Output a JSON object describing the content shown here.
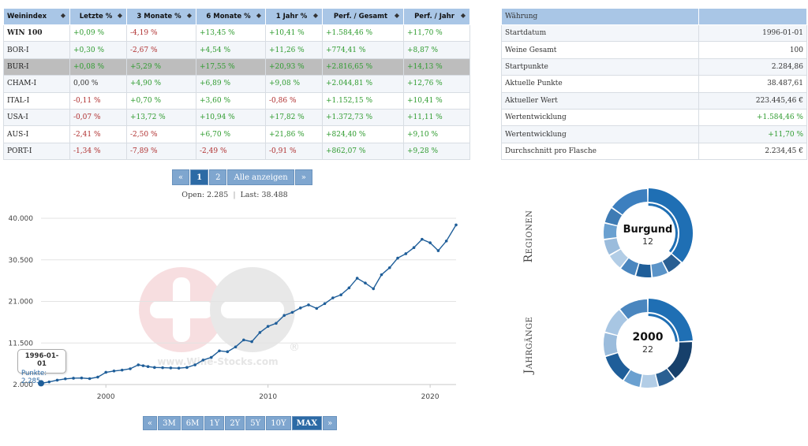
{
  "index_table": {
    "headers": [
      "Weinindex",
      "Letzte %",
      "3 Monate %",
      "6 Monate %",
      "1 Jahr %",
      "Perf. / Gesamt",
      "Perf. / Jahr"
    ],
    "sort_icon": "sort-icon",
    "rows": [
      {
        "name": "WIN 100",
        "cells": [
          "+0,09 %",
          "-4,19 %",
          "+13,45 %",
          "+10,41 %",
          "+1.584,46 %",
          "+11,70 %"
        ]
      },
      {
        "name": "BOR-I",
        "cells": [
          "+0,30 %",
          "-2,67 %",
          "+4,54 %",
          "+11,26 %",
          "+774,41 %",
          "+8,87 %"
        ]
      },
      {
        "name": "BUR-I",
        "cells": [
          "+0,08 %",
          "+5,29 %",
          "+17,55 %",
          "+20,93 %",
          "+2.816,65 %",
          "+14,13 %"
        ]
      },
      {
        "name": "CHAM-I",
        "cells": [
          "0,00 %",
          "+4,90 %",
          "+6,89 %",
          "+9,08 %",
          "+2.044,81 %",
          "+12,76 %"
        ]
      },
      {
        "name": "ITAL-I",
        "cells": [
          "-0,11 %",
          "+0,70 %",
          "+3,60 %",
          "-0,86 %",
          "+1.152,15 %",
          "+10,41 %"
        ]
      },
      {
        "name": "USA-I",
        "cells": [
          "-0,07 %",
          "+13,72 %",
          "+10,94 %",
          "+17,82 %",
          "+1.372,73 %",
          "+11,11 %"
        ]
      },
      {
        "name": "AUS-I",
        "cells": [
          "-2,41 %",
          "-2,50 %",
          "+6,70 %",
          "+21,86 %",
          "+824,40 %",
          "+9,10 %"
        ]
      },
      {
        "name": "PORT-I",
        "cells": [
          "-1,34 %",
          "-7,89 %",
          "-2,49 %",
          "-0,91 %",
          "+862,07 %",
          "+9,28 %"
        ]
      }
    ]
  },
  "stats_table": {
    "header": "Währung",
    "rows": [
      {
        "label": "Startdatum",
        "value": "1996-01-01"
      },
      {
        "label": "Weine Gesamt",
        "value": "100"
      },
      {
        "label": "Startpunkte",
        "value": "2.284,86"
      },
      {
        "label": "Aktuelle Punkte",
        "value": "38.487,61"
      },
      {
        "label": "Aktueller Wert",
        "value": "223.445,46 €"
      },
      {
        "label": "Wertentwicklung",
        "value": "+1.584,46 %"
      },
      {
        "label": "Wertentwicklung",
        "value": "+11,70 %"
      },
      {
        "label": "Durchschnitt pro Flasche",
        "value": "2.234,45 €"
      }
    ]
  },
  "pagination": {
    "prev": "«",
    "pages": [
      "1",
      "2"
    ],
    "active_page": "1",
    "show_all": "Alle anzeigen",
    "next": "»"
  },
  "open_last": {
    "open": "Open: 2.285",
    "separator": "|",
    "last": "Last: 38.488"
  },
  "chart_data": {
    "type": "line",
    "title": "",
    "xlabel": "",
    "ylabel": "",
    "ylim": [
      2000,
      40000
    ],
    "y_ticks": [
      2000,
      11500,
      21000,
      30500,
      40000
    ],
    "y_tick_labels": [
      "2.000",
      "11.500",
      "21.000",
      "30.500",
      "40.000"
    ],
    "x_range": [
      1996,
      2021.6
    ],
    "x_ticks": [
      2000,
      2010,
      2020
    ],
    "x_tick_labels": [
      "2000",
      "2010",
      "2020"
    ],
    "series": [
      {
        "name": "WIN 100",
        "color": "#1f5e99",
        "x": [
          1996.0,
          1996.5,
          1997.0,
          1997.5,
          1998.0,
          1998.5,
          1999.0,
          1999.5,
          2000.0,
          2000.5,
          2001.0,
          2001.5,
          2002.0,
          2002.3,
          2002.6,
          2003.0,
          2003.5,
          2004.0,
          2004.5,
          2005.0,
          2005.5,
          2006.0,
          2006.5,
          2007.0,
          2007.5,
          2008.0,
          2008.5,
          2009.0,
          2009.5,
          2010.0,
          2010.5,
          2011.0,
          2011.5,
          2012.0,
          2012.5,
          2013.0,
          2013.5,
          2014.0,
          2014.5,
          2015.0,
          2015.5,
          2016.0,
          2016.5,
          2017.0,
          2017.5,
          2018.0,
          2018.5,
          2019.0,
          2019.5,
          2020.0,
          2020.5,
          2021.0,
          2021.6
        ],
        "values": [
          2285,
          2600,
          3000,
          3300,
          3450,
          3500,
          3350,
          3700,
          4800,
          5100,
          5300,
          5600,
          6500,
          6300,
          6100,
          5900,
          5850,
          5800,
          5750,
          5900,
          6500,
          7600,
          8200,
          9700,
          9500,
          10600,
          12200,
          11800,
          13900,
          15300,
          16000,
          17800,
          18500,
          19500,
          20200,
          19400,
          20500,
          21800,
          22500,
          24100,
          26300,
          25200,
          23900,
          27100,
          28700,
          30900,
          31900,
          33300,
          35200,
          34400,
          32600,
          34800,
          38488
        ]
      }
    ]
  },
  "tooltip": {
    "date": "1996-01-01",
    "points": "Punkte: 2.285"
  },
  "watermark": {
    "text": "www.Wine-Stocks.com",
    "registered": "®"
  },
  "range_selector": {
    "prev": "«",
    "options": [
      "3M",
      "6M",
      "1Y",
      "2Y",
      "5Y",
      "10Y",
      "MAX"
    ],
    "active": "MAX",
    "next": "»"
  },
  "donuts": {
    "regionen": {
      "label": "Regionen",
      "center_title": "Burgund",
      "center_count": "12",
      "segments": [
        {
          "value": 12,
          "color": "#1f6fb4"
        },
        {
          "value": 2,
          "color": "#2a5f92"
        },
        {
          "value": 2,
          "color": "#5b94c8"
        },
        {
          "value": 2,
          "color": "#1f5e99"
        },
        {
          "value": 2,
          "color": "#4a86bf"
        },
        {
          "value": 2,
          "color": "#b2cde6"
        },
        {
          "value": 2,
          "color": "#9bbcdc"
        },
        {
          "value": 2,
          "color": "#6aa0d0"
        },
        {
          "value": 2,
          "color": "#3e7bb4"
        },
        {
          "value": 5,
          "color": "#3c7fbf"
        }
      ]
    },
    "jahrgaenge": {
      "label": "Jahrgänge",
      "center_title": "2000",
      "center_count": "22",
      "segments": [
        {
          "value": 22,
          "color": "#1f6fb4"
        },
        {
          "value": 14,
          "color": "#17406b"
        },
        {
          "value": 6,
          "color": "#2a5f92"
        },
        {
          "value": 6,
          "color": "#b2cde6"
        },
        {
          "value": 6,
          "color": "#6aa0d0"
        },
        {
          "value": 10,
          "color": "#1f5e99"
        },
        {
          "value": 8,
          "color": "#9bbcdc"
        },
        {
          "value": 9,
          "color": "#a8c6e3"
        },
        {
          "value": 10,
          "color": "#4a86bf"
        }
      ]
    }
  },
  "colors": {
    "header_bg": "#a9c6e6",
    "positive": "#2e9b2e",
    "negative": "#b03030",
    "accent": "#2c6aa5"
  }
}
